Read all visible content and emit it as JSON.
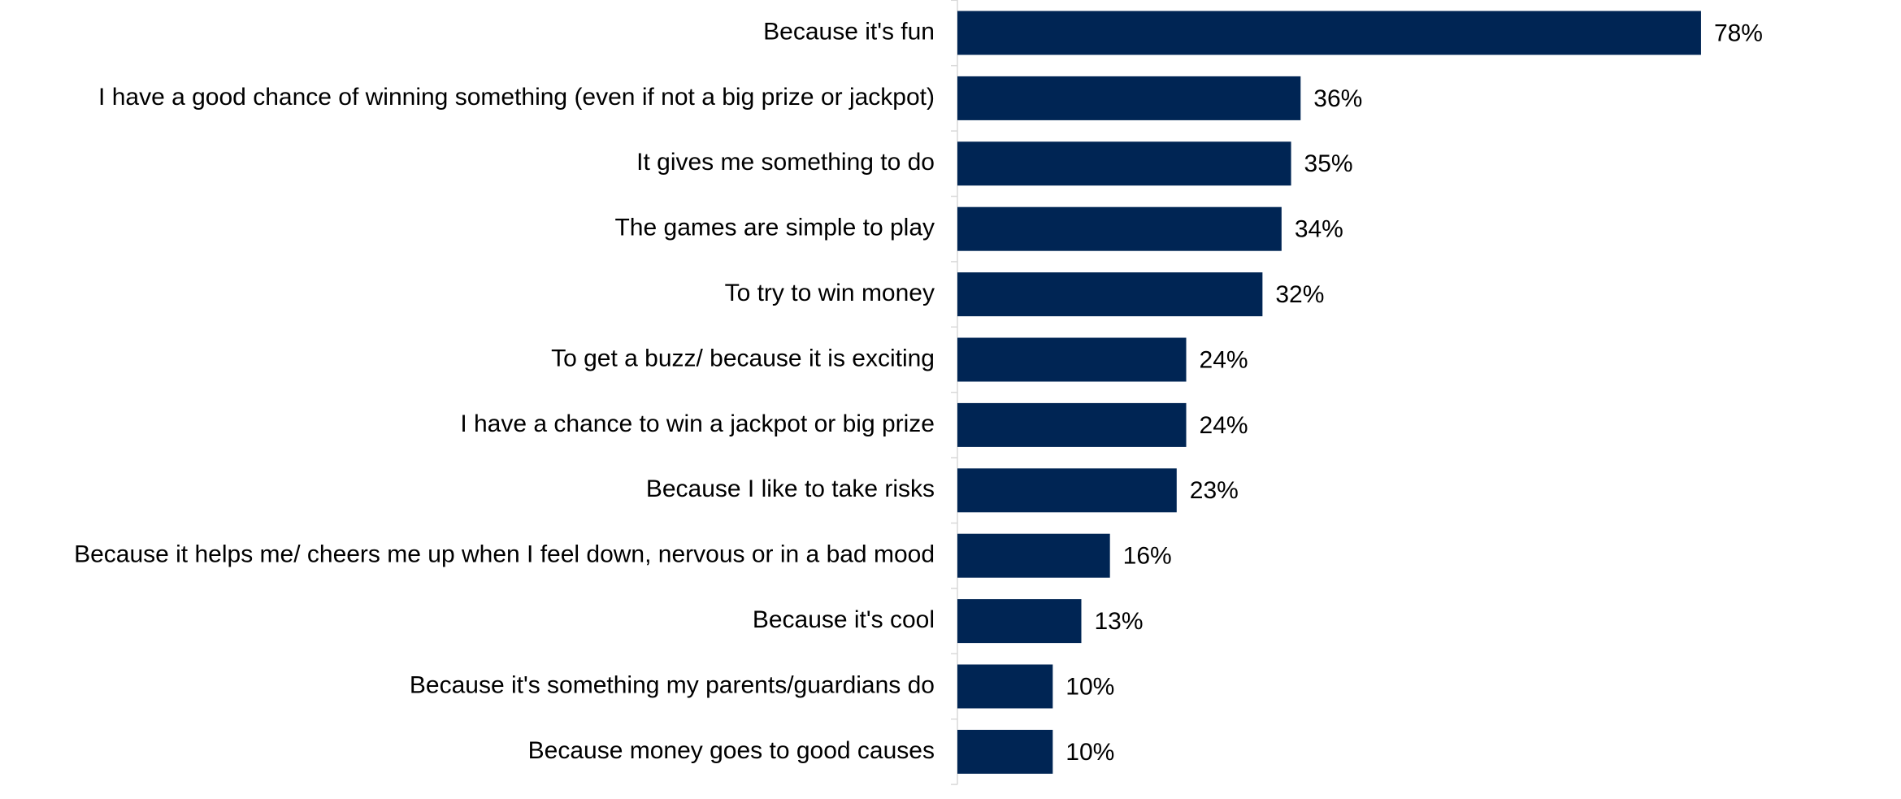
{
  "chart_data": {
    "type": "barh",
    "categories": [
      "Because it's fun",
      "I have a good chance of winning something (even if not a big prize or jackpot)",
      "It gives me something to do",
      "The games are simple to play",
      "To try to win money",
      "To get a buzz/ because it is exciting",
      "I have a chance to win a jackpot or big prize",
      "Because I like to take risks",
      "Because it helps me/ cheers me up when I feel down, nervous or in a bad mood",
      "Because it's cool",
      "Because it's something my parents/guardians do",
      "Because money goes to good causes"
    ],
    "values": [
      78,
      36,
      35,
      34,
      32,
      24,
      24,
      23,
      16,
      13,
      10,
      10
    ],
    "value_labels": [
      "78%",
      "36%",
      "35%",
      "34%",
      "32%",
      "24%",
      "24%",
      "23%",
      "16%",
      "13%",
      "10%",
      "10%"
    ],
    "color": "#002554"
  }
}
